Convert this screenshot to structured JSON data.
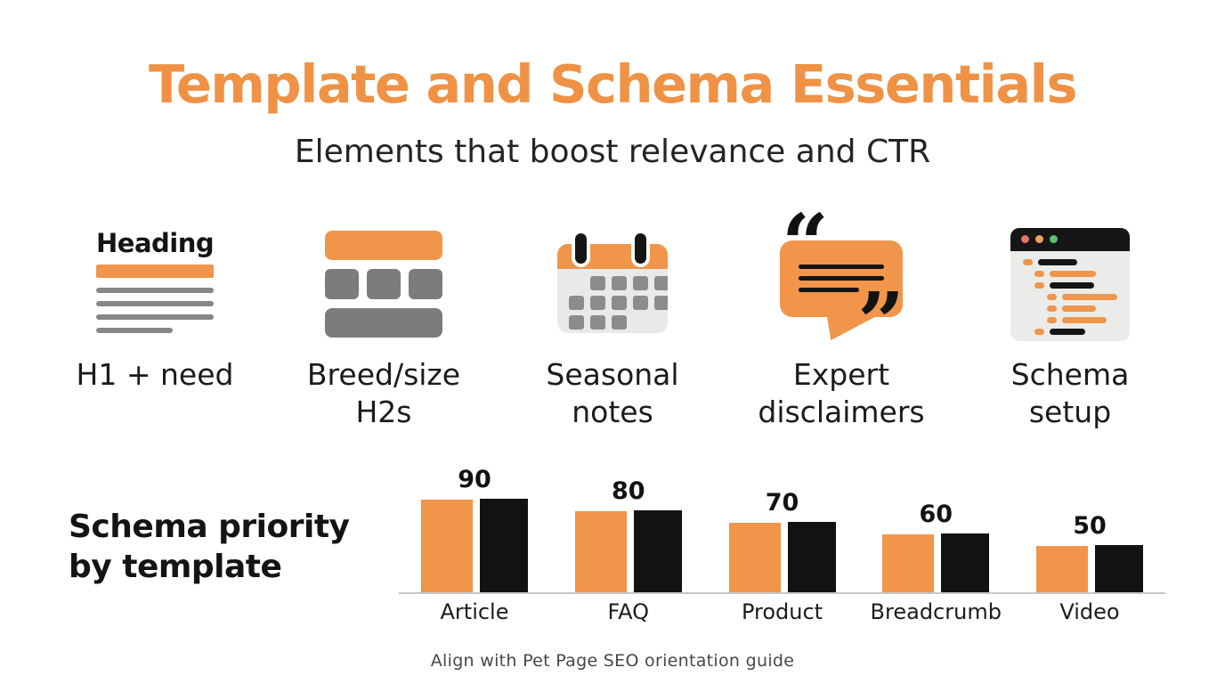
{
  "page": {
    "title": "Template and Schema Essentials",
    "subtitle": "Elements that boost relevance and CTR",
    "footer_note": "Align with Pet Page SEO orientation guide"
  },
  "features": [
    {
      "label": "H1 + need",
      "icon": "heading-document-icon",
      "icon_text": "Heading"
    },
    {
      "label": "Breed/size H2s",
      "icon": "layout-blocks-icon"
    },
    {
      "label": "Seasonal notes",
      "icon": "calendar-icon"
    },
    {
      "label": "Expert disclaimers",
      "icon": "quote-bubble-icon"
    },
    {
      "label": "Schema setup",
      "icon": "browser-code-icon"
    }
  ],
  "glyphs": {
    "open_quote": "“",
    "close_quote": "”"
  },
  "chart_data": {
    "type": "bar",
    "title": "Schema priority by template",
    "categories": [
      "Article",
      "FAQ",
      "Product",
      "Breadcrumb",
      "Video"
    ],
    "series": [
      {
        "name": "priority-orange",
        "color": "#F0954A",
        "values": [
          90,
          80,
          70,
          60,
          50
        ]
      },
      {
        "name": "priority-black",
        "color": "#121212",
        "values": [
          90,
          80,
          70,
          60,
          50
        ]
      }
    ],
    "value_labels": [
      "90",
      "80",
      "70",
      "60",
      "50"
    ],
    "xlabel": "",
    "ylabel": "",
    "ylim": [
      0,
      100
    ],
    "grid": false,
    "legend": false,
    "baseline_color": "#C7C7C7"
  },
  "colors": {
    "accent_orange": "#F0954A",
    "title_orange": "#EF9245",
    "text_dark": "#1A1A1A",
    "icon_gray": "#85878A",
    "block_gray": "#7B7C7E",
    "panel_gray": "#E9E9E9",
    "bar_black": "#121212",
    "browser_dot_red": "#E57368",
    "browser_dot_orange": "#F0A25B",
    "browser_dot_green": "#5FBF73"
  }
}
